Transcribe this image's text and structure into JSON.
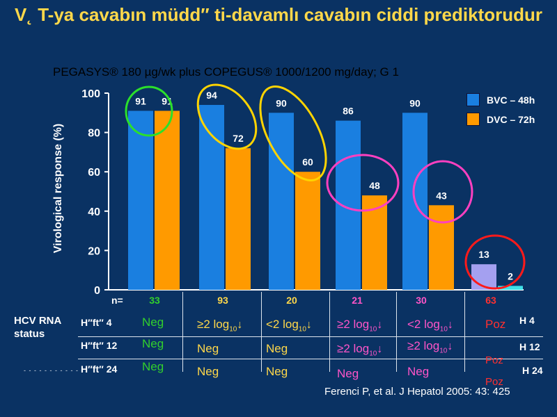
{
  "title": "V˛ T-ya cavabın müdd″ ti-davamlı cavabın ciddi prediktorudur",
  "subtitle": "PEGASYS® 180 µg/wk plus COPEGUS® 1000/1200 mg/day; G 1",
  "ylabel": "Virological response (%)",
  "legend": [
    {
      "label": "BVC – 48h",
      "color": "#1a7fe0"
    },
    {
      "label": "DVC – 72h",
      "color": "#ff9a00"
    }
  ],
  "chart_data": {
    "type": "bar",
    "ylim": [
      0,
      100
    ],
    "yticks": [
      "0",
      "20",
      "40",
      "60",
      "80",
      "100"
    ],
    "series": [
      {
        "name": "BVC – 48h",
        "values": [
          91,
          94,
          90,
          86,
          90,
          13
        ],
        "color": "#1a7fe0"
      },
      {
        "name": "DVC – 72h",
        "values": [
          91,
          72,
          60,
          48,
          43,
          2
        ],
        "color": "#ff9a00"
      }
    ],
    "labels_bvc": [
      "91",
      "94",
      "90",
      "86",
      "90",
      "13"
    ],
    "labels_dvc": [
      "91",
      "72",
      "60",
      "48",
      "43",
      "2"
    ]
  },
  "n_label": "n=",
  "n_values": [
    "33",
    "93",
    "20",
    "21",
    "30",
    "63"
  ],
  "n_colors": [
    "#32d02c",
    "#ffd84a",
    "#ffd84a",
    "#ff55c8",
    "#ff55c8",
    "#ff3030"
  ],
  "status_label_1": "HCV RNA",
  "status_label_2": "status",
  "weeks": [
    "H″ft″ 4",
    "H″ft″ 12",
    "H″ft″ 24"
  ],
  "h_labels": [
    "H 4",
    "H 12",
    "H 24"
  ],
  "cells": {
    "c1": [
      "Neg",
      "Neg",
      "Neg"
    ],
    "c2_row1": "≥2 log",
    "c2_row2": "Neg",
    "c2_row3": "Neg",
    "c3_row1": "<2 log",
    "c3_row2": "Neg",
    "c3_row3": "Neg",
    "c4_row1": "≥2 log",
    "c4_row2": "≥2 log",
    "c4_row3": "Neg",
    "c5_row1": "<2 log",
    "c5_row2": "≥2 log",
    "c5_row3": "Neg",
    "c6": [
      "Poz",
      "Poz",
      "Poz"
    ],
    "sub10": "10",
    "arrow": "↓"
  },
  "citation": "Ferenci P, et al. J Hepatol 2005: 43: 425",
  "dash_mark": "- - - - - - - - - - - -"
}
